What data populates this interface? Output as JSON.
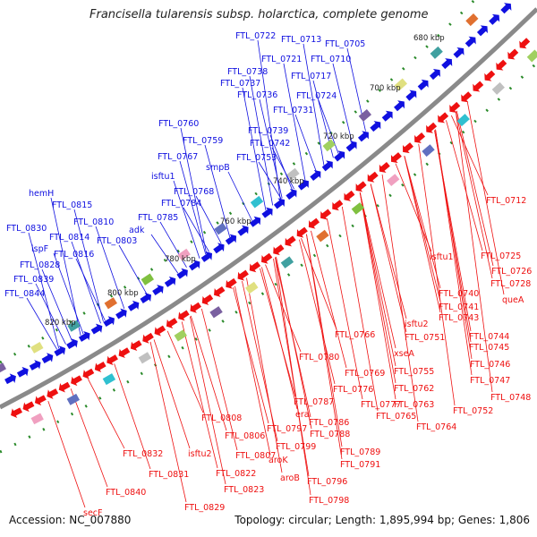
{
  "title": "Francisella tularensis subsp. holarctica, complete genome",
  "footer": {
    "accession_label": "Accession:",
    "accession": "NC_007880",
    "topology_label": "Topology:",
    "topology": "circular",
    "length_label": "Length:",
    "length": "1,895,994 bp",
    "genes_label": "Genes:",
    "genes": "1,806"
  },
  "colors": {
    "forward_strand": "#1010e0",
    "reverse_strand": "#ee1010",
    "backbone": "#888888",
    "tick_marks": "#2a8a2a"
  },
  "kbp_ticks": [
    "680 kbp",
    "700 kbp",
    "720 kbp",
    "740 kbp",
    "760 kbp",
    "780 kbp",
    "800 kbp",
    "820 kbp"
  ],
  "forward_labels": [
    "FTL_0722",
    "FTL_0713",
    "FTL_0705",
    "FTL_0721",
    "FTL_0710",
    "FTL_0738",
    "FTL_0717",
    "FTL_0737",
    "FTL_0736",
    "FTL_0724",
    "FTL_0731",
    "FTL_0760",
    "FTL_0739",
    "FTL_0759",
    "FTL_0742",
    "FTL_0767",
    "FTL_0753",
    "smpB",
    "isftu1",
    "FTL_0768",
    "hemH",
    "FTL_0784",
    "FTL_0815",
    "FTL_0785",
    "FTL_0810",
    "FTL_0830",
    "FTL_0814",
    "adk",
    "FTL_0803",
    "ispF",
    "FTL_0816",
    "FTL_0828",
    "FTL_0839",
    "FTL_0844"
  ],
  "reverse_labels": [
    "FTL_0712",
    "FTL_0725",
    "isftu1",
    "FTL_0726",
    "FTL_0728",
    "queA",
    "FTL_0740",
    "FTL_0741",
    "FTL_0743",
    "isftu2",
    "FTL_0744",
    "FTL_0766",
    "FTL_0751",
    "FTL_0745",
    "xseA",
    "FTL_0746",
    "FTL_0780",
    "FTL_0755",
    "FTL_0747",
    "FTL_0769",
    "FTL_0762",
    "FTL_0776",
    "FTL_0748",
    "FTL_0763",
    "FTL_0777",
    "FTL_0752",
    "FTL_0787",
    "FTL_0765",
    "era",
    "FTL_0786",
    "FTL_0764",
    "FTL_0808",
    "FTL_0797",
    "FTL_0788",
    "FTL_0806",
    "FTL_0799",
    "FTL_0789",
    "aroK",
    "FTL_0807",
    "FTL_0791",
    "FTL_0832",
    "isftu2",
    "FTL_0822",
    "aroB",
    "FTL_0796",
    "FTL_0831",
    "FTL_0823",
    "FTL_0798",
    "FTL_0840",
    "FTL_0829",
    "secF"
  ]
}
